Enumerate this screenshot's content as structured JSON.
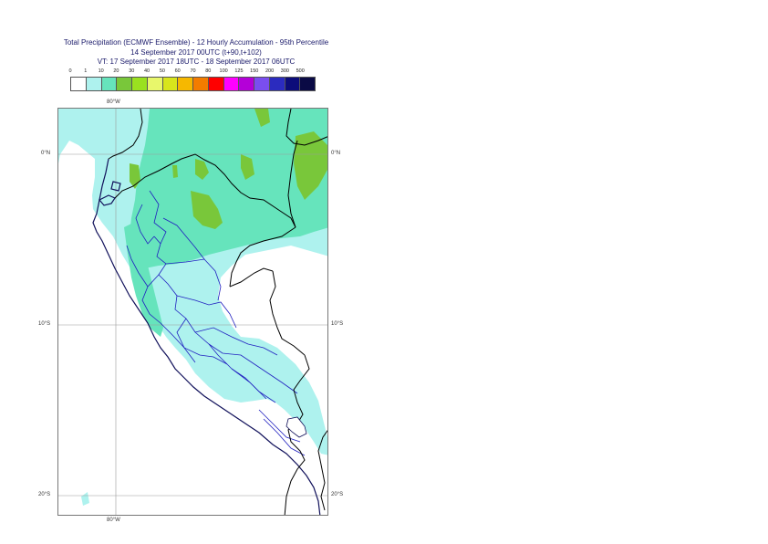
{
  "title": {
    "line1": "Total Precipitation (ECMWF Ensemble) - 12 Hourly Accumulation - 95th Percentile",
    "line2": "14 September 2017 00UTC (t+90,t+102)",
    "line3": "VT: 17 September 2017 18UTC - 18 September 2017 06UTC"
  },
  "legend": {
    "ticks": [
      "0",
      "1",
      "10",
      "20",
      "30",
      "40",
      "50",
      "60",
      "70",
      "80",
      "100",
      "125",
      "150",
      "200",
      "300",
      "500"
    ],
    "colors": [
      "#ffffff",
      "#aef2ee",
      "#66e4bc",
      "#79c73a",
      "#9ae11f",
      "#e8f76b",
      "#d8e51c",
      "#f6b800",
      "#f37c00",
      "#ff0000",
      "#ff00ff",
      "#b400d8",
      "#7a4ef0",
      "#2b2bbf",
      "#0c0c7a",
      "#0a0a45"
    ]
  },
  "axes": {
    "lon_top": "80°W",
    "lon_bottom": "80°W",
    "lat_left": [
      "0°N",
      "10°S",
      "20°S"
    ],
    "lat_right": [
      "0°N",
      "10°S",
      "20°S"
    ]
  },
  "map": {
    "region": "Peru / Ecuador",
    "colors": {
      "light": "#aef2ee",
      "medium": "#66e4bc",
      "green": "#79c73a",
      "coast": "#10105a",
      "border": "#000000",
      "admin": "#2020c0",
      "grid": "#9a9a9a"
    }
  }
}
